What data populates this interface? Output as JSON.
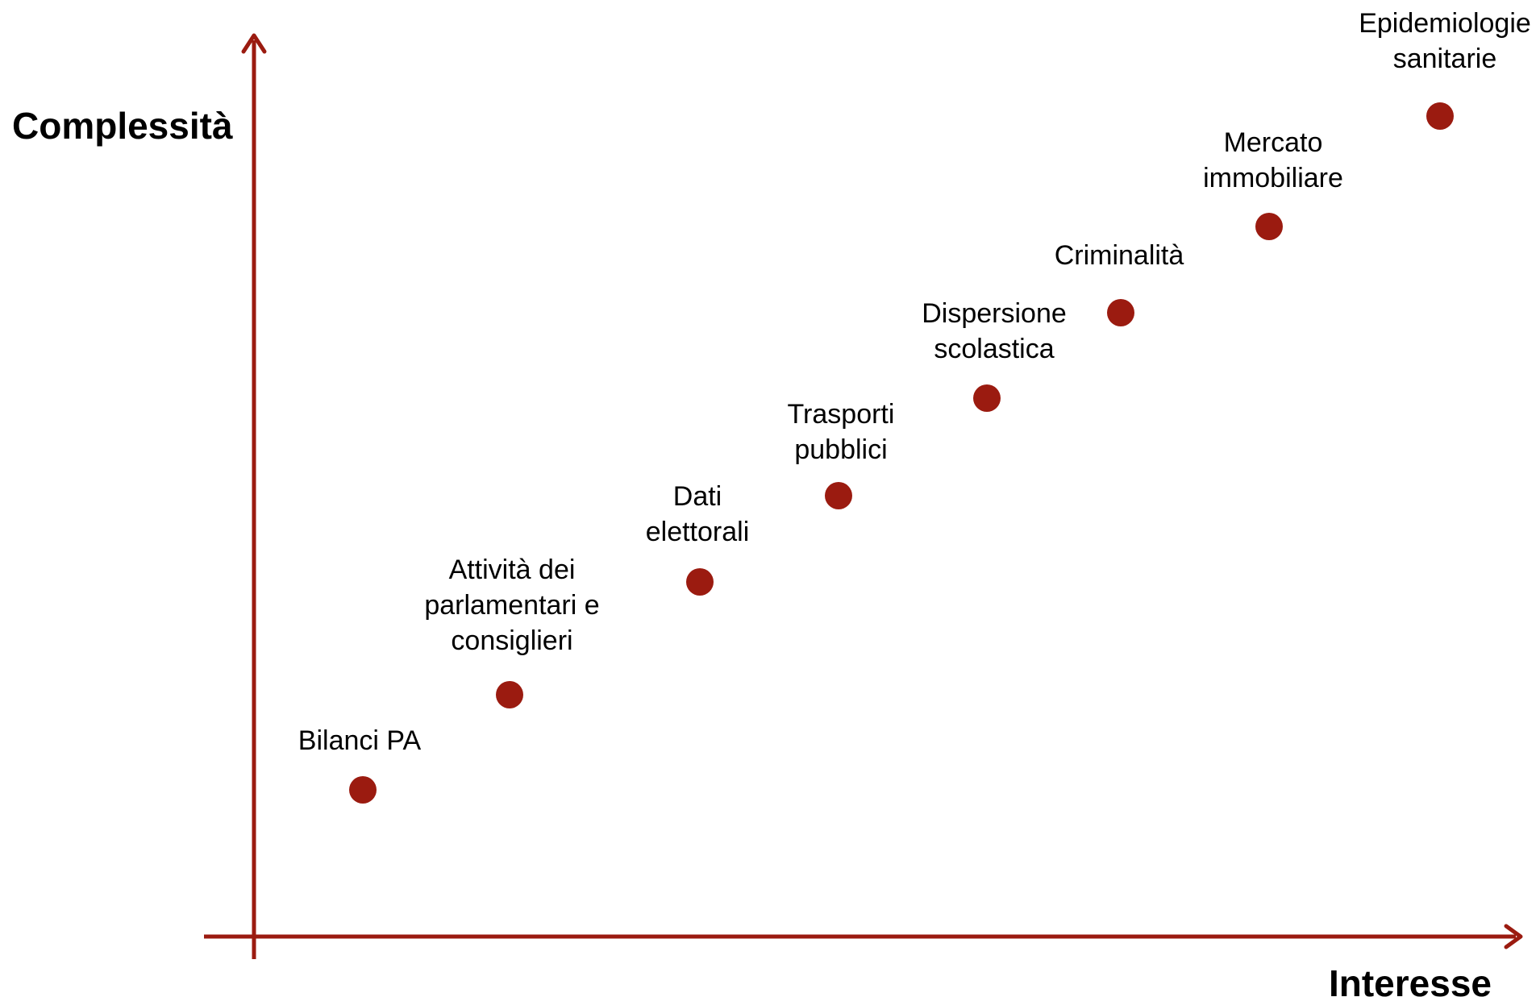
{
  "colors": {
    "accent": "#9b1b10",
    "text": "#000000",
    "background": "#ffffff"
  },
  "axes": {
    "y_title": "Complessità",
    "x_title": "Interesse"
  },
  "points": [
    {
      "id": "bilanci-pa",
      "lines": [
        "Bilanci PA"
      ],
      "interesse_rank": 1,
      "complessita_rank": 1
    },
    {
      "id": "attivita-parlamentari",
      "lines": [
        "Attività dei",
        "parlamentari e",
        "consiglieri"
      ],
      "interesse_rank": 2,
      "complessita_rank": 2
    },
    {
      "id": "dati-elettorali",
      "lines": [
        "Dati",
        "elettorali"
      ],
      "interesse_rank": 3,
      "complessita_rank": 3
    },
    {
      "id": "trasporti-pubblici",
      "lines": [
        "Trasporti",
        "pubblici"
      ],
      "interesse_rank": 4,
      "complessita_rank": 4
    },
    {
      "id": "dispersione-scolastica",
      "lines": [
        "Dispersione",
        "scolastica"
      ],
      "interesse_rank": 5,
      "complessita_rank": 5
    },
    {
      "id": "criminalita",
      "lines": [
        "Criminalità"
      ],
      "interesse_rank": 6,
      "complessita_rank": 6
    },
    {
      "id": "mercato-immobiliare",
      "lines": [
        "Mercato",
        "immobiliare"
      ],
      "interesse_rank": 7,
      "complessita_rank": 7
    },
    {
      "id": "epidemiologie-sanitarie",
      "lines": [
        "Epidemiologie",
        "sanitarie"
      ],
      "interesse_rank": 8,
      "complessita_rank": 8
    }
  ]
}
